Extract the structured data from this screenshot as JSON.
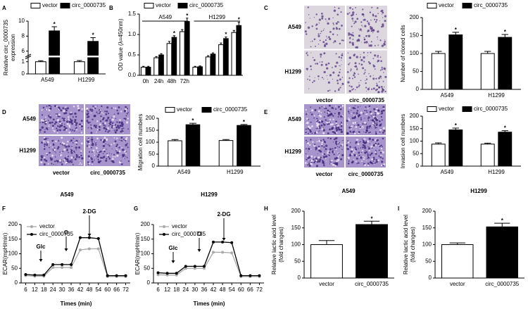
{
  "chart_data": [
    {
      "panel": "A",
      "type": "bar",
      "ylabel": [
        "Relative circ_0000735",
        "expression"
      ],
      "categories": [
        "A549",
        "H1299"
      ],
      "legend": "top",
      "series": [
        {
          "name": "vector",
          "color": "#ffffff",
          "values": [
            1,
            1
          ],
          "errors": [
            0.08,
            0.1
          ]
        },
        {
          "name": "circ_0000735",
          "color": "#000000",
          "values": [
            8.7,
            7.3
          ],
          "errors": [
            0.55,
            0.5
          ],
          "annotations": [
            "*",
            "*"
          ]
        }
      ],
      "ylim": [
        0,
        10
      ],
      "yticks": [
        0,
        1,
        6,
        8,
        10
      ],
      "ybreak": [
        1.3,
        5.5
      ]
    },
    {
      "panel": "B",
      "type": "bar",
      "ylabel": "OD value (λ=450nm)",
      "categories": [
        "0h",
        "24h",
        "48h",
        "72h",
        null,
        null,
        null,
        null
      ],
      "group_labels": [
        "A549",
        "H1299"
      ],
      "legend": "top",
      "series": [
        {
          "name": "vector",
          "color": "#ffffff",
          "values": [
            0.2,
            0.43,
            0.78,
            1.07,
            0.2,
            0.45,
            0.75,
            1.05
          ],
          "errors": [
            0.02,
            0.03,
            0.05,
            0.05,
            0.02,
            0.03,
            0.04,
            0.05
          ]
        },
        {
          "name": "circ_0000735",
          "color": "#000000",
          "values": [
            0.2,
            0.5,
            0.93,
            1.32,
            0.21,
            0.52,
            0.9,
            1.22
          ],
          "errors": [
            0.02,
            0.03,
            0.04,
            0.08,
            0.02,
            0.03,
            0.04,
            0.08
          ],
          "annotations": [
            null,
            null,
            "*",
            "*",
            null,
            null,
            "*",
            "*"
          ]
        }
      ],
      "ylim": [
        0,
        1.5
      ],
      "yticks": [
        {
          "value": 0,
          "label": "0.0"
        },
        0.5,
        {
          "value": 1,
          "label": "1.0"
        },
        1.5
      ]
    },
    {
      "panel": "C",
      "type": "bar",
      "image_rows": [
        "A549",
        "H1299"
      ],
      "image_cols": [
        "vector",
        "circ_0000735"
      ],
      "ylabel": "Number of cloned cells",
      "categories": [
        "A549",
        "H1299"
      ],
      "legend": "top",
      "series": [
        {
          "name": "vector",
          "color": "#ffffff",
          "values": [
            100,
            100
          ],
          "errors": [
            6,
            6
          ]
        },
        {
          "name": "circ_0000735",
          "color": "#000000",
          "values": [
            152,
            145
          ],
          "errors": [
            7,
            8
          ],
          "annotations": [
            "*",
            "*"
          ]
        }
      ],
      "ylim": [
        0,
        200
      ],
      "yticks": [
        0,
        50,
        100,
        150,
        200
      ]
    },
    {
      "panel": "D",
      "type": "bar",
      "image_rows": [
        "A549",
        "H1299"
      ],
      "image_cols": [
        "vector",
        "circ_0000735"
      ],
      "ylabel": "Migration cell numbers",
      "categories": [
        "A549",
        "H1299"
      ],
      "legend": "top",
      "series": [
        {
          "name": "vector",
          "color": "#ffffff",
          "values": [
            106,
            107
          ],
          "errors": [
            5,
            4
          ]
        },
        {
          "name": "circ_0000735",
          "color": "#000000",
          "values": [
            173,
            170
          ],
          "errors": [
            6,
            4
          ],
          "annotations": [
            "*",
            "*"
          ]
        }
      ],
      "ylim": [
        0,
        200
      ],
      "yticks": [
        0,
        50,
        100,
        150,
        200
      ]
    },
    {
      "panel": "E",
      "type": "bar",
      "image_rows": [
        "A549",
        "H1299"
      ],
      "image_cols": [
        "vector",
        "circ_0000735"
      ],
      "ylabel": "Invasion cell numbers",
      "categories": [
        "A549",
        "H1299"
      ],
      "legend": "top",
      "series": [
        {
          "name": "vector",
          "color": "#ffffff",
          "values": [
            88,
            88
          ],
          "errors": [
            5,
            4
          ]
        },
        {
          "name": "circ_0000735",
          "color": "#000000",
          "values": [
            145,
            136
          ],
          "errors": [
            7,
            6
          ],
          "annotations": [
            "*",
            "*"
          ]
        }
      ],
      "ylim": [
        0,
        200
      ],
      "yticks": [
        0,
        50,
        100,
        150,
        200
      ]
    },
    {
      "panel": "F",
      "type": "line",
      "title": "A549",
      "xlabel": "Times (min)",
      "ylabel": "ECAR(mpH/min)",
      "legend": "upper left",
      "annotations": [
        "Glc",
        "O",
        "2-DG"
      ],
      "x": [
        6,
        12,
        18,
        24,
        30,
        36,
        42,
        48,
        54,
        60,
        66,
        72
      ],
      "xlim": [
        3,
        75
      ],
      "xticks": [
        6,
        12,
        18,
        24,
        30,
        36,
        42,
        48,
        54,
        60,
        66,
        72
      ],
      "series": [
        {
          "name": "vector",
          "color": "#aaaaaa",
          "values": [
            25,
            23,
            23,
            53,
            53,
            53,
            113,
            117,
            117,
            22,
            22,
            22
          ]
        },
        {
          "name": "circ_0000735",
          "color": "#000000",
          "values": [
            29,
            27,
            27,
            63,
            63,
            63,
            155,
            155,
            152,
            25,
            25,
            25
          ]
        }
      ],
      "ylim": [
        0,
        200
      ],
      "yticks": [
        0,
        50,
        100,
        150,
        200
      ]
    },
    {
      "panel": "G",
      "type": "line",
      "title": "H1299",
      "xlabel": "Times (min)",
      "ylabel": "ECAR(mpH/min)",
      "legend": "upper left",
      "annotations": [
        "Glc",
        "O",
        "2-DG"
      ],
      "x": [
        6,
        12,
        18,
        24,
        30,
        36,
        42,
        48,
        54,
        60,
        66,
        72
      ],
      "xlim": [
        3,
        75
      ],
      "xticks": [
        6,
        12,
        18,
        24,
        30,
        36,
        42,
        48,
        54,
        60,
        66,
        72
      ],
      "series": [
        {
          "name": "vector",
          "color": "#aaaaaa",
          "values": [
            28,
            27,
            27,
            50,
            50,
            50,
            105,
            105,
            103,
            22,
            22,
            22
          ]
        },
        {
          "name": "circ_0000735",
          "color": "#000000",
          "values": [
            35,
            33,
            33,
            57,
            57,
            57,
            140,
            140,
            138,
            25,
            25,
            25
          ]
        }
      ],
      "ylim": [
        0,
        200
      ],
      "yticks": [
        0,
        50,
        100,
        150,
        200
      ]
    },
    {
      "panel": "H",
      "type": "bar",
      "title": "A549",
      "ylabel": [
        "Relative lactic acid level",
        "(fold changes)"
      ],
      "categories": [
        "vector",
        "circ_0000735"
      ],
      "values": [
        100,
        160
      ],
      "errors": [
        12,
        10
      ],
      "colors": [
        "#ffffff",
        "#000000"
      ],
      "annotations": [
        null,
        "*"
      ],
      "ylim": [
        0,
        200
      ],
      "yticks": [
        0,
        50,
        100,
        150,
        200
      ]
    },
    {
      "panel": "I",
      "type": "bar",
      "title": "H1299",
      "ylabel": [
        "Relative lactic acid level",
        "(fold changes)"
      ],
      "categories": [
        "vector",
        "circ_0000735"
      ],
      "values": [
        100,
        153
      ],
      "errors": [
        5,
        11
      ],
      "colors": [
        "#ffffff",
        "#000000"
      ],
      "annotations": [
        null,
        "*"
      ],
      "ylim": [
        0,
        200
      ],
      "yticks": [
        0,
        50,
        100,
        150,
        200
      ]
    }
  ]
}
